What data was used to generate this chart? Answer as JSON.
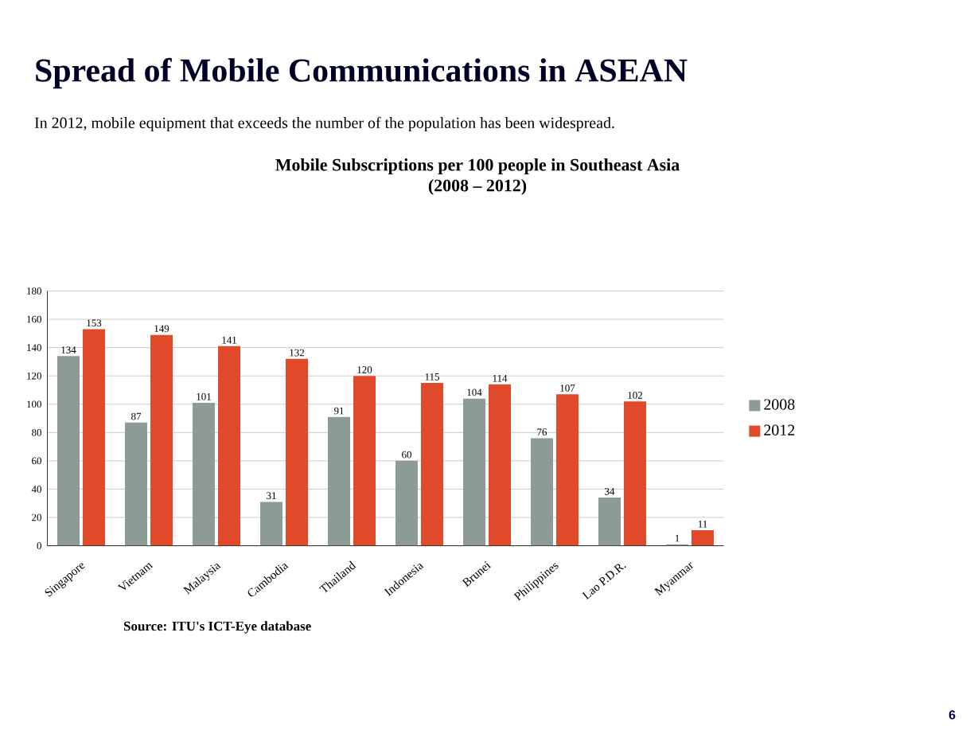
{
  "chart_data": {
    "type": "bar",
    "title": "Mobile Subscriptions per 100 people in Southeast Asia",
    "subtitle": "(2008 – 2012)",
    "categories": [
      "Singapore",
      "Vietnam",
      "Malaysia",
      "Cambodia",
      "Thailand",
      "Indonesia",
      "Brunei",
      "Philippines",
      "Lao P.D.R.",
      "Myanmar"
    ],
    "series": [
      {
        "name": "2008",
        "color": "#8c9c94",
        "values": [
          134,
          87,
          101,
          31,
          91,
          60,
          104,
          76,
          34,
          1
        ]
      },
      {
        "name": "2012",
        "color": "#e04a2a",
        "values": [
          153,
          149,
          141,
          132,
          120,
          115,
          114,
          107,
          102,
          11
        ]
      }
    ],
    "ylim": [
      0,
      180
    ],
    "yticks": [
      0,
      20,
      40,
      60,
      80,
      100,
      120,
      140,
      160,
      180
    ],
    "grid": "y",
    "legend": "right",
    "data_labels": true,
    "annotations": [
      "Spread of Mobile Communications in ASEAN",
      "In 2012, mobile equipment that exceeds the number of the population has been widespread.",
      "Source: ITU's ICT-Eye database",
      "6"
    ]
  }
}
